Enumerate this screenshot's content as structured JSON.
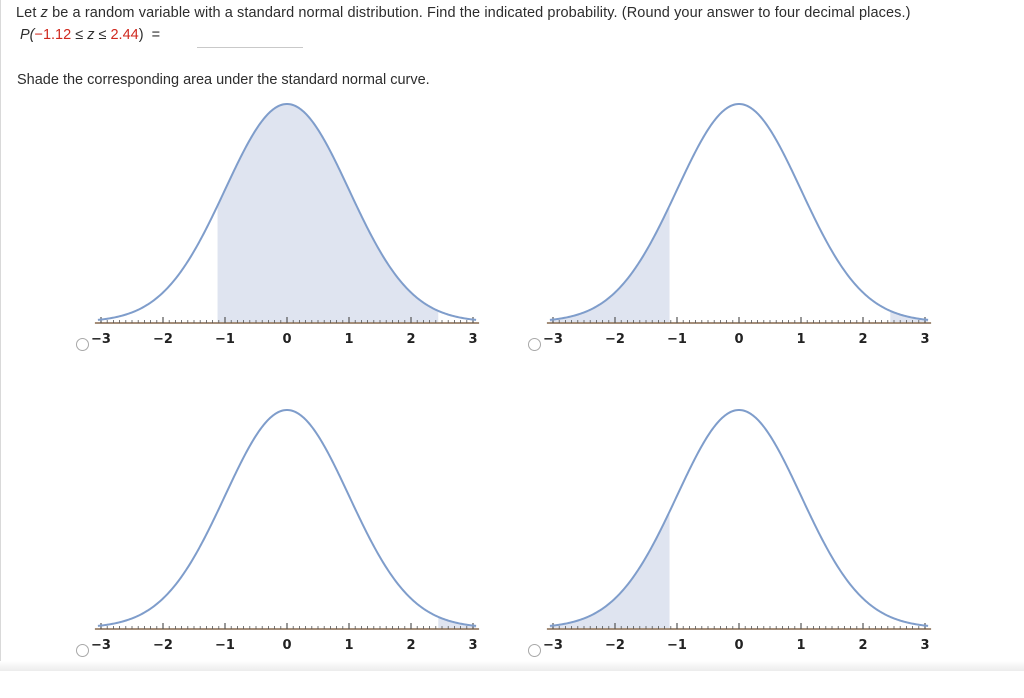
{
  "question": {
    "intro": "Let ",
    "var": "z",
    "rest": " be a random variable with a standard normal distribution. Find the indicated probability. (Round your answer to four decimal places.)"
  },
  "probability": {
    "prefix": "P(",
    "lower": "−1.12",
    "le1": " ≤ ",
    "var": "z",
    "le2": " ≤ ",
    "upper": "2.44",
    "suffix": ")",
    "equals": "=",
    "answer_value": "",
    "answer_placeholder": ""
  },
  "instruction": "Shade the corresponding area under the standard normal curve.",
  "colors": {
    "curve": "#7f9dcb",
    "shade": "#dfe4f0",
    "axis": "#6d4a2b",
    "highlight_red": "#d0281e"
  },
  "tick_labels": [
    "−3",
    "−2",
    "−1",
    "0",
    "1",
    "2",
    "3"
  ],
  "choices": [
    {
      "shaded_regions": [
        [
          -1.12,
          2.44
        ]
      ],
      "selected": false
    },
    {
      "shaded_regions": [
        [
          -3.5,
          -1.12
        ],
        [
          2.44,
          3.5
        ]
      ],
      "selected": false
    },
    {
      "shaded_regions": [
        [
          2.44,
          3.5
        ]
      ],
      "selected": false
    },
    {
      "shaded_regions": [
        [
          -3.5,
          -1.12
        ]
      ],
      "selected": false
    }
  ]
}
